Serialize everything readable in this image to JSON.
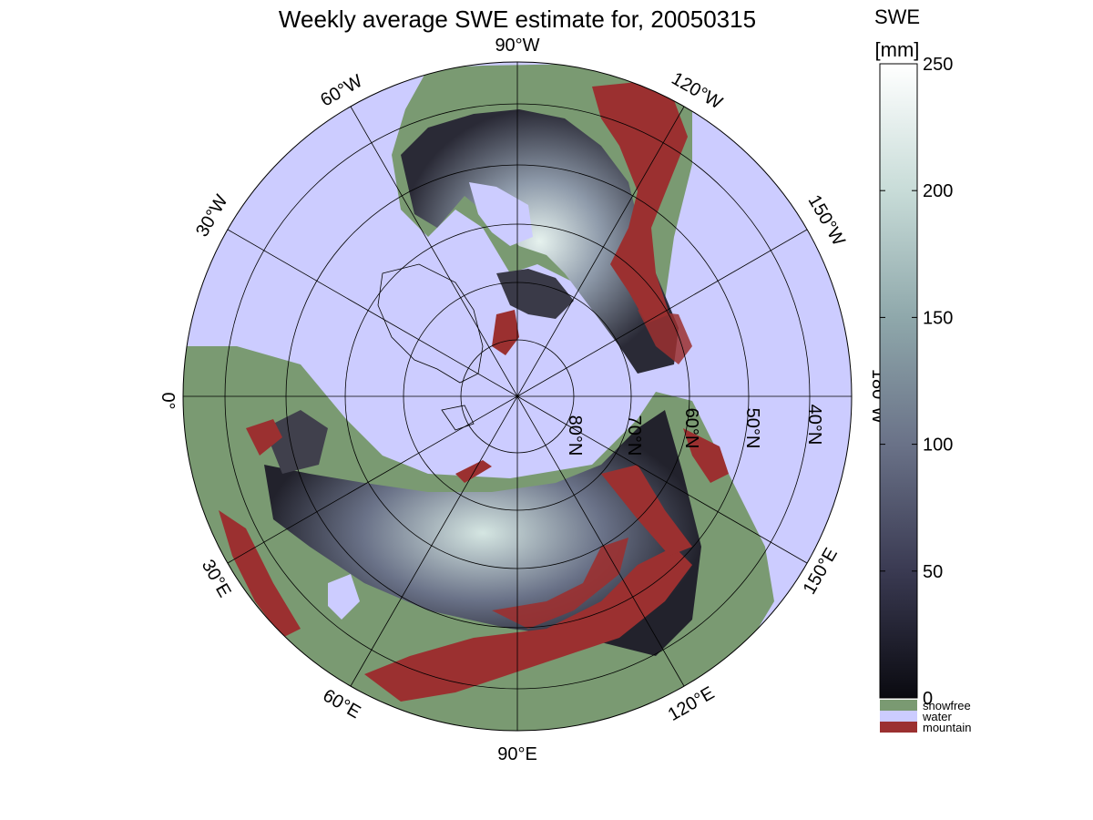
{
  "title": "Weekly average SWE estimate for, 20050315",
  "colorbar": {
    "title_line1": "SWE",
    "title_line2": "[mm]",
    "ticks": [
      "0",
      "50",
      "100",
      "150",
      "200",
      "250"
    ],
    "range": [
      0,
      250
    ],
    "gradient_stops": [
      "#0a0a10",
      "#3a3a52",
      "#6a7288",
      "#8fa8ab",
      "#c8dcd8",
      "#ffffff"
    ]
  },
  "legend": [
    {
      "label": "snowfree",
      "color": "#7a9a72"
    },
    {
      "label": "water",
      "color": "#ccccff"
    },
    {
      "label": "mountain",
      "color": "#9b3030"
    }
  ],
  "map": {
    "ocean_color": "#ccccff",
    "snowfree_color": "#7a9a72",
    "mountain_color": "#9b3030",
    "snow_dark": "#2a2a36",
    "snow_mid": "#6a7288",
    "snow_light": "#dcebe6",
    "longitude_labels": {
      "lon_90w": "90°W",
      "lon_120w": "120°W",
      "lon_60w": "60°W",
      "lon_150w": "150°W",
      "lon_30w": "30°W",
      "lon_180w": "180°W",
      "lon_0": "0°",
      "lon_30e": "30°E",
      "lon_150e": "150°E",
      "lon_60e": "60°E",
      "lon_120e": "120°E",
      "lon_90e": "90°E"
    },
    "latitude_labels": {
      "lat_80n": "80°N",
      "lat_70n": "70°N",
      "lat_60n": "60°N",
      "lat_50n": "50°N",
      "lat_40n": "40°N"
    }
  }
}
